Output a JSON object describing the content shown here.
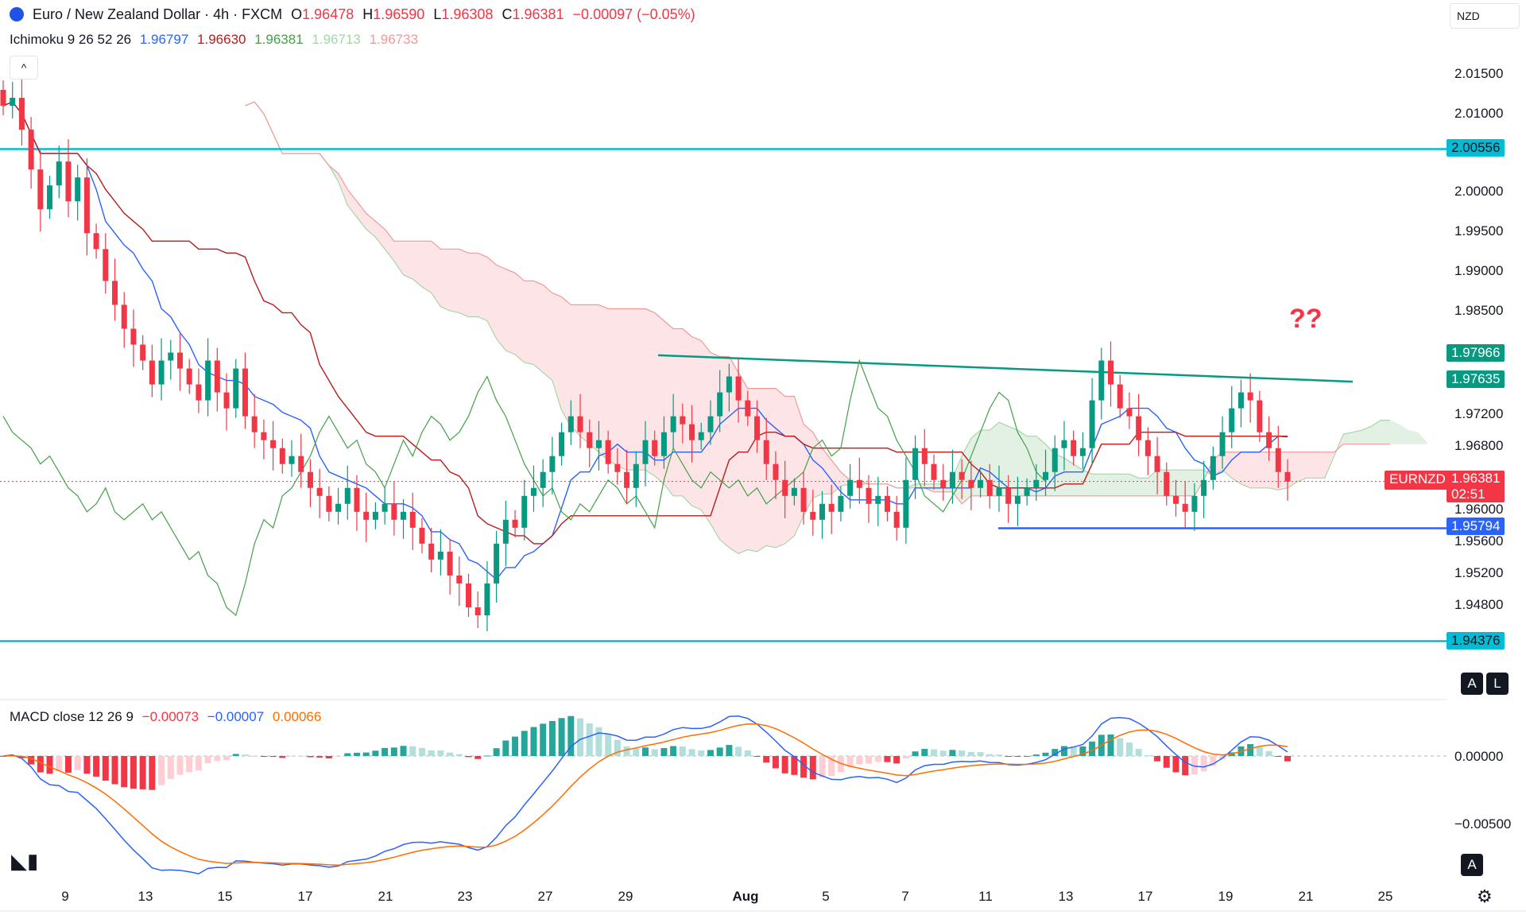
{
  "header": {
    "title": "Euro / New Zealand Dollar · 4h · FXCM",
    "o_label": "O",
    "o_value": "1.96478",
    "h_label": "H",
    "h_value": "1.96590",
    "l_label": "L",
    "l_value": "1.96308",
    "c_label": "C",
    "c_value": "1.96381",
    "change": "−0.00097 (−0.05%)",
    "currency": "NZD",
    "collapse_icon": "chevron-up-icon"
  },
  "ichimoku": {
    "label": "Ichimoku 9 26 52 26",
    "values": [
      "1.96797",
      "1.96630",
      "1.96381",
      "1.96713",
      "1.96733"
    ],
    "colors": [
      "#2962ff",
      "#b71c1c",
      "#43a047",
      "#a5d6a7",
      "#ef9a9a"
    ]
  },
  "macd": {
    "label": "MACD close 12 26 9",
    "values": [
      "−0.00073",
      "−0.00007",
      "0.00066"
    ],
    "colors": [
      "#f23645",
      "#2962ff",
      "#ff6d00"
    ],
    "ticks": [
      "0.00000",
      "−0.00500"
    ]
  },
  "annotation": "??",
  "price_tags": {
    "resistance_top": "2.00556",
    "triangle_top": "1.97966",
    "triangle_end": "1.97635",
    "symbol": "EURNZD",
    "last_price": "1.96381",
    "countdown": "02:51",
    "support": "1.95794",
    "bottom": "1.94376"
  },
  "y_ticks": [
    "2.01500",
    "2.01000",
    "2.00000",
    "1.99500",
    "1.99000",
    "1.98500",
    "1.97200",
    "1.96800",
    "1.96000",
    "1.95600",
    "1.95200",
    "1.94800"
  ],
  "x_ticks": [
    "9",
    "13",
    "15",
    "17",
    "21",
    "23",
    "27",
    "29",
    "Aug",
    "5",
    "7",
    "11",
    "13",
    "17",
    "19",
    "21",
    "25"
  ],
  "buttons": {
    "auto": "A",
    "log": "L",
    "auto2": "A"
  },
  "colors": {
    "up": "#089981",
    "down": "#f23645",
    "hline": "#00bcd4",
    "trend": "#089981",
    "support": "#2962ff",
    "annotation": "#f23645"
  },
  "chart_data": {
    "type": "candlestick",
    "timeframe": "4h",
    "horizontal_levels": [
      2.00556,
      1.94376,
      1.95794
    ],
    "trendline": {
      "from": 1.97966,
      "to": 1.97635
    },
    "closes": [
      2.011,
      2.012,
      2.008,
      2.003,
      1.998,
      2.001,
      2.004,
      1.999,
      2.002,
      1.995,
      1.993,
      1.989,
      1.986,
      1.983,
      1.981,
      1.979,
      1.976,
      1.979,
      1.98,
      1.978,
      1.976,
      1.974,
      1.979,
      1.975,
      1.973,
      1.978,
      1.972,
      1.97,
      1.969,
      1.968,
      1.966,
      1.967,
      1.965,
      1.963,
      1.962,
      1.96,
      1.961,
      1.963,
      1.96,
      1.959,
      1.96,
      1.961,
      1.959,
      1.96,
      1.958,
      1.956,
      1.954,
      1.955,
      1.952,
      1.951,
      1.948,
      1.947,
      1.951,
      1.956,
      1.959,
      1.958,
      1.962,
      1.963,
      1.965,
      1.967,
      1.97,
      1.972,
      1.97,
      1.968,
      1.969,
      1.966,
      1.965,
      1.963,
      1.966,
      1.969,
      1.967,
      1.97,
      1.972,
      1.971,
      1.969,
      1.97,
      1.972,
      1.975,
      1.977,
      1.974,
      1.972,
      1.969,
      1.966,
      1.964,
      1.962,
      1.963,
      1.96,
      1.959,
      1.961,
      1.96,
      1.962,
      1.964,
      1.963,
      1.961,
      1.962,
      1.96,
      1.958,
      1.964,
      1.968,
      1.966,
      1.964,
      1.963,
      1.965,
      1.964,
      1.963,
      1.964,
      1.962,
      1.963,
      1.961,
      1.962,
      1.963,
      1.964,
      1.965,
      1.968,
      1.969,
      1.967,
      1.968,
      1.974,
      1.979,
      1.976,
      1.973,
      1.972,
      1.969,
      1.967,
      1.965,
      1.962,
      1.961,
      1.96,
      1.962,
      1.964,
      1.967,
      1.97,
      1.973,
      1.975,
      1.974,
      1.97,
      1.968,
      1.965,
      1.9638
    ]
  }
}
